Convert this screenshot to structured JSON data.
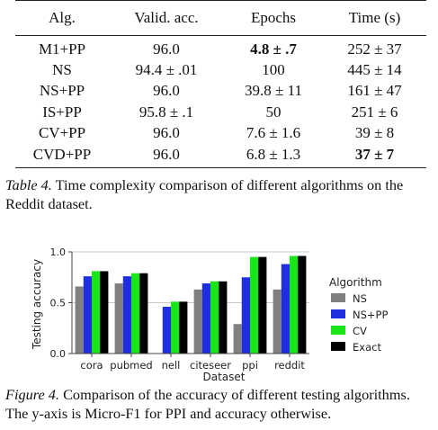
{
  "table": {
    "headers": [
      "Alg.",
      "Valid. acc.",
      "Epochs",
      "Time (s)"
    ],
    "rows": [
      {
        "alg": "M1+PP",
        "acc": "96.0",
        "epochs": "4.8 ± .7",
        "time": "252 ± 37"
      },
      {
        "alg": "NS",
        "acc": "94.4 ± .01",
        "epochs": "100",
        "time": "445 ± 14"
      },
      {
        "alg": "NS+PP",
        "acc": "96.0",
        "epochs": "39.8 ± 11",
        "time": "161 ± 47"
      },
      {
        "alg": "IS+PP",
        "acc": "95.8 ± .1",
        "epochs": "50",
        "time": "251 ± 6"
      },
      {
        "alg": "CV+PP",
        "acc": "96.0",
        "epochs": "7.6 ± 1.6",
        "time": "39 ± 8"
      },
      {
        "alg": "CVD+PP",
        "acc": "96.0",
        "epochs": "6.8 ± 1.3",
        "time": "37 ± 7"
      }
    ],
    "bold_cells": [
      [
        0,
        "epochs"
      ],
      [
        5,
        "time"
      ]
    ]
  },
  "table_caption": {
    "lead": "Table 4.",
    "text": " Time complexity comparison of different algorithms on the Reddit dataset."
  },
  "chart_data": {
    "type": "bar",
    "categories": [
      "cora",
      "pubmed",
      "nell",
      "citeseer",
      "ppi",
      "reddit"
    ],
    "series": [
      {
        "name": "NS",
        "color": "#808080",
        "values": [
          0.66,
          0.69,
          0.0,
          0.63,
          0.29,
          0.63
        ]
      },
      {
        "name": "NS+PP",
        "color": "#1f2ee0",
        "values": [
          0.76,
          0.76,
          0.46,
          0.69,
          0.75,
          0.88
        ]
      },
      {
        "name": "CV",
        "color": "#19e619",
        "values": [
          0.81,
          0.79,
          0.51,
          0.71,
          0.95,
          0.96
        ]
      },
      {
        "name": "Exact",
        "color": "#000000",
        "values": [
          0.81,
          0.79,
          0.51,
          0.71,
          0.95,
          0.96
        ]
      }
    ],
    "xlabel": "Dataset",
    "ylabel": "Testing accuracy",
    "ylim": [
      0,
      1
    ],
    "yticks": [
      0.0,
      0.5,
      1.0
    ],
    "ytick_labels": [
      "0.0",
      "0.5",
      "1.0"
    ],
    "legend_title": "Algorithm",
    "legend_position": "right"
  },
  "figure_caption": {
    "lead": "Figure 4.",
    "text": " Comparison of the accuracy of different testing algorithms. The y-axis is Micro-F1 for PPI and accuracy otherwise."
  }
}
